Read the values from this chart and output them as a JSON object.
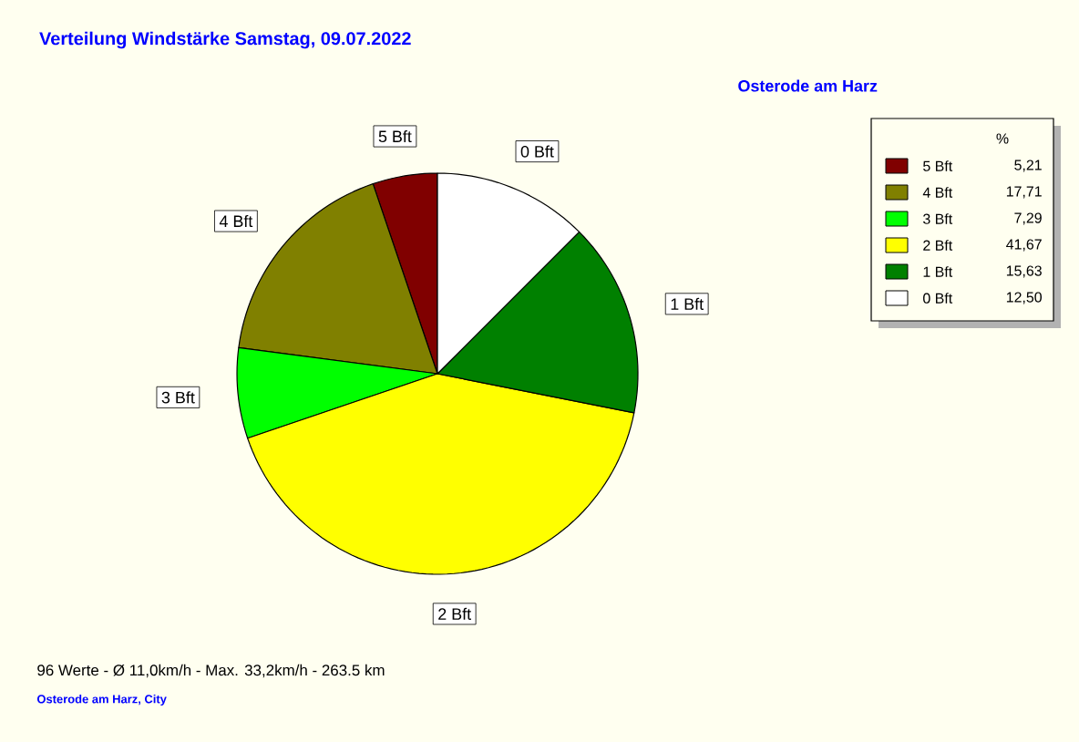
{
  "chart_data": {
    "type": "pie",
    "title": "Verteilung Windstärke  Samstag, 09.07.2022",
    "subtitle": "Osterode am Harz",
    "categories": [
      "5 Bft",
      "4 Bft",
      "3 Bft",
      "2 Bft",
      "1 Bft",
      "0 Bft"
    ],
    "values": [
      5.21,
      17.71,
      7.29,
      41.67,
      15.63,
      12.5
    ],
    "value_labels": [
      "5,21",
      "17,71",
      "7,29",
      "41,67",
      "15,63",
      "12,50"
    ],
    "colors": [
      "#800000",
      "#808000",
      "#00ff00",
      "#ffff00",
      "#008000",
      "#ffffff"
    ],
    "legend": "right",
    "legend_title": "%",
    "annotations": [
      "96 Werte   -   Ø 11,0km/h  -  Max. 33,2km/h   -   263.5 km",
      "Osterode am Harz, City"
    ]
  }
}
